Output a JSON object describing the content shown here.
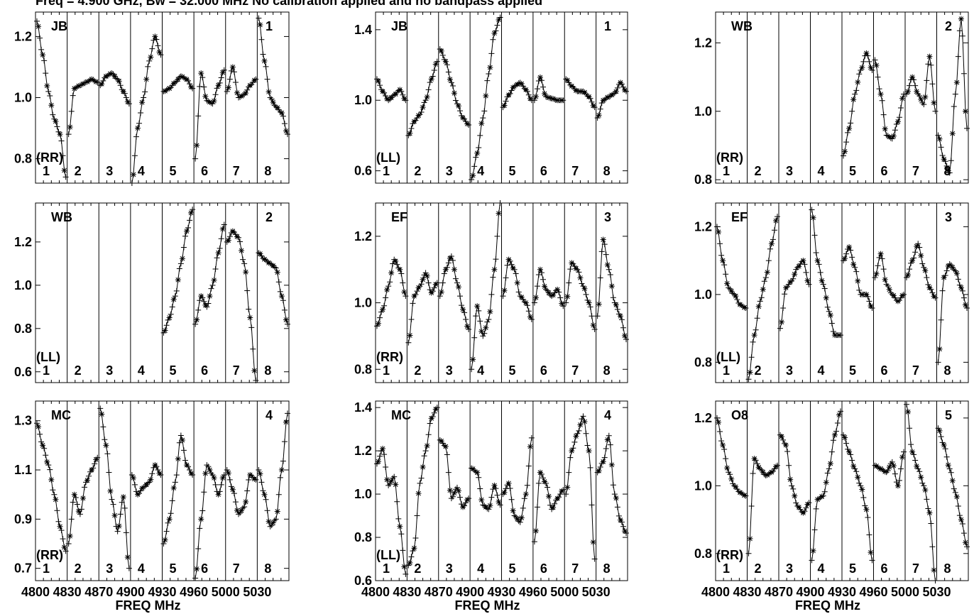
{
  "header": {
    "title": "Freq = 4.900 GHz, Bw = 32.000 MHz No calibration applied and no bandpass applied"
  },
  "chart_data": [
    {
      "type": "line",
      "baseline": "JB",
      "polarization": "(RR)",
      "panel_number": "1",
      "spectral_windows": [
        "1",
        "2",
        "3",
        "4",
        "5",
        "6",
        "7",
        "8"
      ],
      "y_ticks": [
        "0.8",
        "1.0",
        "1.2"
      ],
      "ylim": [
        0.72,
        1.28
      ],
      "series": [
        {
          "values": [
            [
              1.25,
              1.14,
              1.02,
              0.93,
              0.88,
              0.74
            ],
            [
              0.88,
              1.03,
              1.04,
              1.05,
              1.06,
              1.05
            ],
            [
              1.04,
              1.07,
              1.08,
              1.06,
              1.02,
              0.98
            ],
            [
              0.72,
              0.9,
              1.0,
              1.12,
              1.2,
              1.14
            ],
            [
              1.02,
              1.03,
              1.05,
              1.07,
              1.06,
              1.03
            ],
            [
              0.8,
              1.08,
              0.99,
              0.98,
              1.04,
              1.09
            ],
            [
              1.02,
              1.1,
              1.0,
              1.01,
              1.04,
              1.06
            ],
            [
              1.26,
              1.12,
              1.0,
              0.97,
              0.95,
              0.88
            ]
          ]
        }
      ]
    },
    {
      "type": "line",
      "baseline": "JB",
      "polarization": "(LL)",
      "panel_number": "1",
      "spectral_windows": [
        "1",
        "2",
        "3",
        "4",
        "5",
        "6",
        "7",
        "8"
      ],
      "y_ticks": [
        "0.6",
        "1.0",
        "1.4"
      ],
      "ylim": [
        0.53,
        1.5
      ],
      "series": [
        {
          "values": [
            [
              1.12,
              1.05,
              1.0,
              1.03,
              1.06,
              1.0
            ],
            [
              0.8,
              0.88,
              0.92,
              1.0,
              1.12,
              1.22
            ],
            [
              1.29,
              1.22,
              1.1,
              0.98,
              0.9,
              0.86
            ],
            [
              0.55,
              0.7,
              0.9,
              1.15,
              1.38,
              1.47
            ],
            [
              0.96,
              1.03,
              1.08,
              1.1,
              1.06,
              1.0
            ],
            [
              1.0,
              1.13,
              1.02,
              1.01,
              1.0,
              1.0
            ],
            [
              1.12,
              1.08,
              1.05,
              1.05,
              1.02,
              0.96
            ],
            [
              0.9,
              1.0,
              1.02,
              1.04,
              1.1,
              1.05
            ]
          ]
        }
      ]
    },
    {
      "type": "line",
      "baseline": "WB",
      "polarization": "(RR)",
      "panel_number": "2",
      "spectral_windows": [
        "1",
        "2",
        "3",
        "4",
        "5",
        "6",
        "7",
        "8"
      ],
      "y_ticks": [
        "0.8",
        "1.0",
        "1.2"
      ],
      "ylim": [
        0.79,
        1.29
      ],
      "series": [
        {
          "values": [
            null,
            null,
            null,
            null,
            [
              0.87,
              0.95,
              1.05,
              1.12,
              1.17,
              1.12
            ],
            [
              1.15,
              1.05,
              0.93,
              0.92,
              0.97,
              1.05
            ],
            [
              1.05,
              1.1,
              1.05,
              1.02,
              1.16,
              1.0
            ],
            [
              0.93,
              0.86,
              0.82,
              1.05,
              1.27,
              0.95
            ]
          ]
        }
      ]
    },
    {
      "type": "line",
      "baseline": "WB",
      "polarization": "(LL)",
      "panel_number": "2",
      "spectral_windows": [
        "1",
        "2",
        "3",
        "4",
        "5",
        "6",
        "7",
        "8"
      ],
      "y_ticks": [
        "0.6",
        "0.8",
        "1.0",
        "1.2"
      ],
      "ylim": [
        0.55,
        1.38
      ],
      "series": [
        {
          "values": [
            null,
            null,
            null,
            null,
            [
              0.78,
              0.85,
              0.95,
              1.1,
              1.25,
              1.35
            ],
            [
              0.82,
              0.95,
              0.9,
              1.0,
              1.15,
              1.28
            ],
            [
              1.2,
              1.25,
              1.22,
              1.1,
              0.85,
              0.56
            ],
            [
              1.15,
              1.12,
              1.1,
              1.08,
              0.95,
              0.82
            ]
          ]
        }
      ]
    },
    {
      "type": "line",
      "baseline": "EF",
      "polarization": "(RR)",
      "panel_number": "3",
      "spectral_windows": [
        "1",
        "2",
        "3",
        "4",
        "5",
        "6",
        "7",
        "8"
      ],
      "y_ticks": [
        "0.8",
        "1.0",
        "1.2"
      ],
      "ylim": [
        0.76,
        1.3
      ],
      "series": [
        {
          "values": [
            [
              0.93,
              0.98,
              1.05,
              1.13,
              1.1,
              1.02
            ],
            [
              0.88,
              1.02,
              1.05,
              1.09,
              1.03,
              1.06
            ],
            [
              1.02,
              1.1,
              1.14,
              1.06,
              0.98,
              0.92
            ],
            [
              0.8,
              0.99,
              0.9,
              0.95,
              1.1,
              1.3
            ],
            [
              1.02,
              1.13,
              1.1,
              1.02,
              1.0,
              0.95
            ],
            [
              1.0,
              1.1,
              1.04,
              1.02,
              1.04,
              0.99
            ],
            [
              1.0,
              1.12,
              1.1,
              1.05,
              1.0,
              0.92
            ],
            [
              0.96,
              1.19,
              1.1,
              1.0,
              0.96,
              0.89
            ]
          ]
        }
      ]
    },
    {
      "type": "line",
      "baseline": "EF",
      "polarization": "(LL)",
      "panel_number": "3",
      "spectral_windows": [
        "1",
        "2",
        "3",
        "4",
        "5",
        "6",
        "7",
        "8"
      ],
      "y_ticks": [
        "0.8",
        "1.0",
        "1.2"
      ],
      "ylim": [
        0.74,
        1.27
      ],
      "series": [
        {
          "values": [
            [
              1.2,
              1.1,
              1.02,
              1.0,
              0.97,
              0.96
            ],
            [
              0.75,
              0.88,
              0.98,
              1.05,
              1.15,
              1.23
            ],
            [
              0.9,
              1.02,
              1.04,
              1.08,
              1.1,
              1.03
            ],
            [
              1.25,
              1.1,
              1.03,
              0.95,
              0.88,
              0.88
            ],
            [
              1.1,
              1.14,
              1.08,
              1.0,
              1.0,
              0.96
            ],
            [
              1.05,
              1.12,
              1.03,
              1.0,
              0.98,
              1.0
            ],
            [
              1.05,
              1.1,
              1.15,
              1.08,
              1.02,
              0.99
            ],
            [
              0.8,
              1.05,
              1.09,
              1.07,
              1.02,
              0.96
            ]
          ]
        }
      ]
    },
    {
      "type": "line",
      "baseline": "MC",
      "polarization": "(RR)",
      "panel_number": "4",
      "spectral_windows": [
        "1",
        "2",
        "3",
        "4",
        "5",
        "6",
        "7",
        "8"
      ],
      "y_ticks": [
        "0.7",
        "0.9",
        "1.1",
        "1.3"
      ],
      "ylim": [
        0.65,
        1.38
      ],
      "series": [
        {
          "values": [
            [
              1.29,
              1.2,
              1.12,
              1.0,
              0.87,
              0.77
            ],
            [
              0.8,
              1.0,
              0.92,
              1.05,
              1.1,
              1.15
            ],
            [
              1.35,
              1.2,
              0.98,
              0.85,
              0.99,
              0.7
            ],
            [
              1.08,
              1.0,
              1.03,
              1.05,
              1.12,
              1.08
            ],
            [
              0.8,
              0.9,
              1.05,
              1.24,
              1.12,
              1.08
            ],
            [
              0.66,
              0.9,
              1.12,
              1.08,
              1.0,
              1.08
            ],
            [
              1.1,
              1.02,
              0.92,
              0.95,
              1.08,
              1.06
            ],
            [
              1.1,
              1.0,
              0.87,
              0.9,
              1.1,
              1.33
            ]
          ]
        }
      ]
    },
    {
      "type": "line",
      "baseline": "MC",
      "polarization": "(LL)",
      "panel_number": "4",
      "spectral_windows": [
        "1",
        "2",
        "3",
        "4",
        "5",
        "6",
        "7",
        "8"
      ],
      "y_ticks": [
        "0.6",
        "0.8",
        "1.0",
        "1.2",
        "1.4"
      ],
      "ylim": [
        0.6,
        1.43
      ],
      "series": [
        {
          "values": [
            [
              1.14,
              1.21,
              1.04,
              1.08,
              0.85,
              0.63
            ],
            [
              0.67,
              0.75,
              1.05,
              1.2,
              1.35,
              1.4
            ],
            [
              1.25,
              1.22,
              0.98,
              1.03,
              0.94,
              0.98
            ],
            [
              1.12,
              1.1,
              0.95,
              0.93,
              1.04,
              0.95
            ],
            [
              1.0,
              1.05,
              0.9,
              0.87,
              1.0,
              1.26
            ],
            [
              0.78,
              1.1,
              1.05,
              0.93,
              0.98,
              1.02
            ],
            [
              1.0,
              1.2,
              1.28,
              1.36,
              1.2,
              0.7
            ],
            [
              1.1,
              1.15,
              1.27,
              1.0,
              0.88,
              0.82
            ]
          ]
        }
      ]
    },
    {
      "type": "line",
      "baseline": "O8",
      "polarization": "(RR)",
      "panel_number": "5",
      "spectral_windows": [
        "1",
        "2",
        "3",
        "4",
        "5",
        "6",
        "7",
        "8"
      ],
      "y_ticks": [
        "0.8",
        "1.0",
        "1.2"
      ],
      "ylim": [
        0.72,
        1.25
      ],
      "series": [
        {
          "values": [
            [
              1.2,
              1.12,
              1.04,
              1.0,
              0.98,
              0.97
            ],
            [
              0.8,
              1.08,
              1.05,
              1.03,
              1.04,
              1.06
            ],
            [
              1.15,
              1.12,
              1.0,
              0.94,
              0.92,
              0.95
            ],
            [
              0.78,
              0.96,
              0.97,
              1.05,
              1.15,
              1.22
            ],
            [
              1.15,
              1.1,
              1.05,
              1.0,
              0.93,
              0.78
            ],
            [
              1.06,
              1.05,
              1.04,
              1.07,
              1.0,
              1.1
            ],
            [
              1.24,
              1.1,
              1.05,
              1.0,
              0.92,
              0.72
            ],
            [
              1.17,
              1.12,
              1.05,
              0.98,
              0.9,
              0.82
            ]
          ]
        }
      ]
    }
  ],
  "axes": {
    "x_tick_labels": [
      "4800",
      "4830",
      "4870",
      "4900",
      "4930",
      "4960",
      "5000",
      "5030"
    ],
    "xlabel": "FREQ MHz"
  }
}
